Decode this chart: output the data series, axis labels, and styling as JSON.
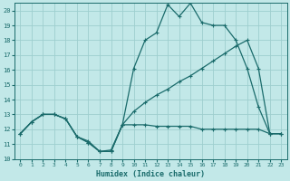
{
  "xlabel": "Humidex (Indice chaleur)",
  "bg_color": "#c2e8e8",
  "grid_color": "#9ecece",
  "line_color": "#1a6b6b",
  "xlim": [
    -0.5,
    23.5
  ],
  "ylim": [
    10,
    20.5
  ],
  "xticks": [
    0,
    1,
    2,
    3,
    4,
    5,
    6,
    7,
    8,
    9,
    10,
    11,
    12,
    13,
    14,
    15,
    16,
    17,
    18,
    19,
    20,
    21,
    22,
    23
  ],
  "yticks": [
    10,
    11,
    12,
    13,
    14,
    15,
    16,
    17,
    18,
    19,
    20
  ],
  "hours": [
    0,
    1,
    2,
    3,
    4,
    5,
    6,
    7,
    8,
    9,
    10,
    11,
    12,
    13,
    14,
    15,
    16,
    17,
    18,
    19,
    20,
    21,
    22,
    23
  ],
  "line_top": [
    11.7,
    12.5,
    13.0,
    13.0,
    12.7,
    11.5,
    11.1,
    10.5,
    10.5,
    12.3,
    16.1,
    18.0,
    18.5,
    20.4,
    19.6,
    20.5,
    19.2,
    19.0,
    19.0,
    18.0,
    16.1,
    13.5,
    11.7,
    11.7
  ],
  "line_mid": [
    11.7,
    12.5,
    13.0,
    13.0,
    12.7,
    11.5,
    11.2,
    10.5,
    10.6,
    12.3,
    13.2,
    13.8,
    14.3,
    14.7,
    15.2,
    15.6,
    16.1,
    16.6,
    17.1,
    17.6,
    18.0,
    16.1,
    11.7,
    11.7
  ],
  "line_bot": [
    11.7,
    12.5,
    13.0,
    13.0,
    12.7,
    11.5,
    11.1,
    10.5,
    10.5,
    12.3,
    12.3,
    12.3,
    12.2,
    12.2,
    12.2,
    12.2,
    12.0,
    12.0,
    12.0,
    12.0,
    12.0,
    12.0,
    11.7,
    11.7
  ]
}
